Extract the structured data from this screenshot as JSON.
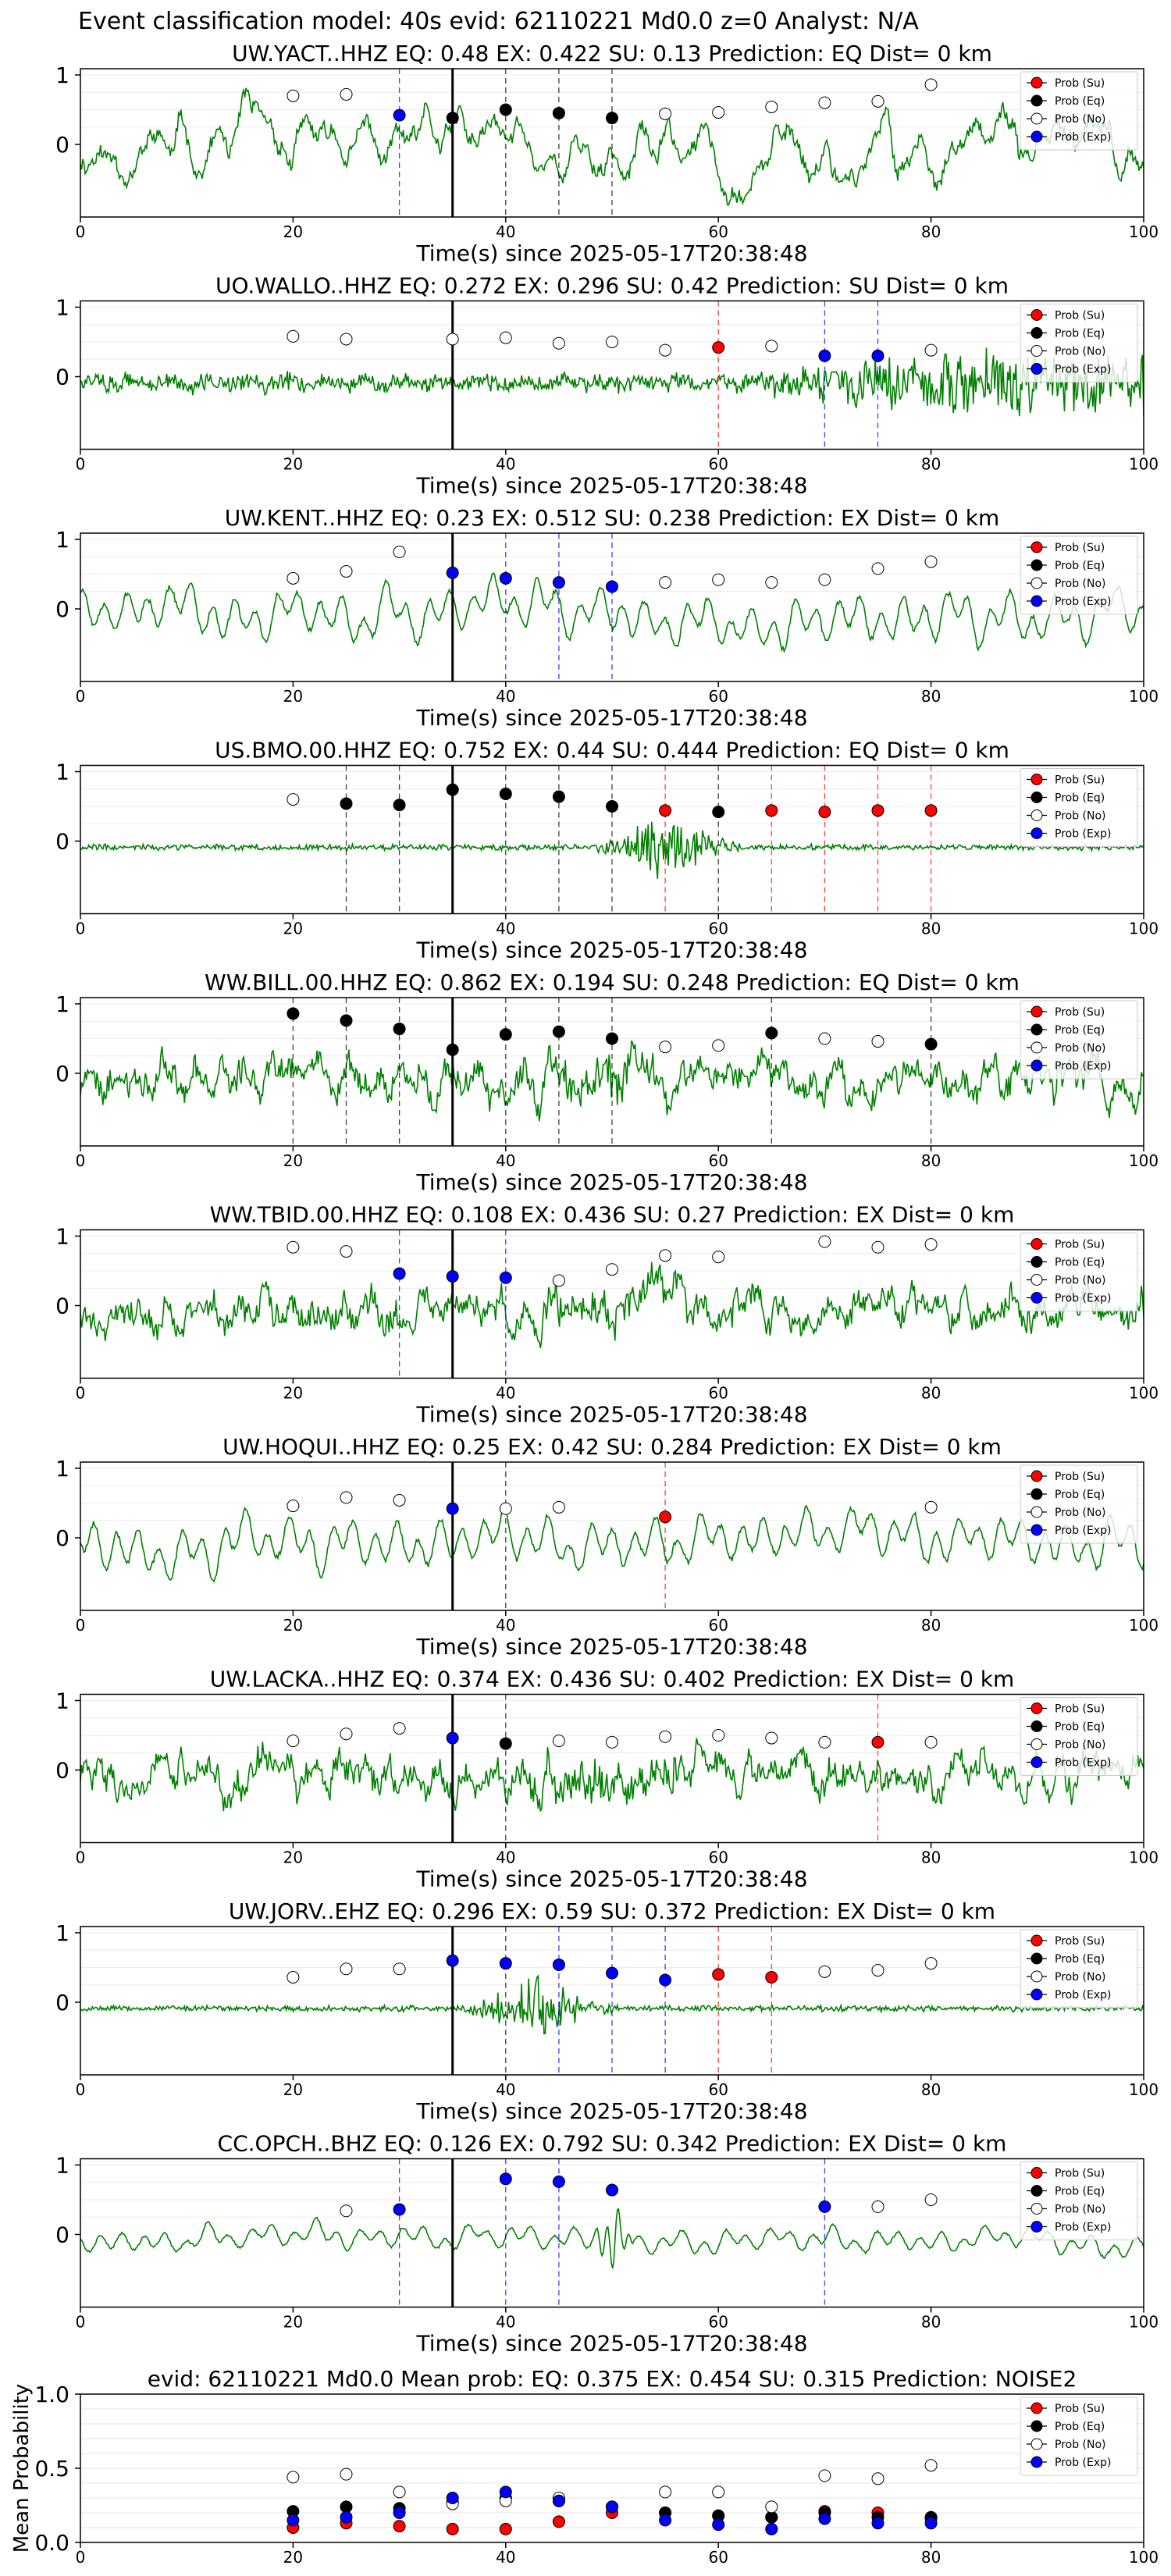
{
  "figure_title": "Event classification model: 40s evid: 62110221 Md0.0 z=0 Analyst: N/A",
  "colors": {
    "waveform": "#008000",
    "su": "#ff0000",
    "eq": "#000000",
    "no": "#ffffff",
    "exp": "#0000ff",
    "su_line": "#ff0000",
    "eq_line": "#000000",
    "exp_line": "#0000ff",
    "origin_line": "#000000"
  },
  "legend": [
    "Prob (Su)",
    "Prob (Eq)",
    "Prob (No)",
    "Prob (Exp)"
  ],
  "chart_data": [
    {
      "type": "line",
      "title": "UW.YACT..HHZ   EQ: 0.48   EX: 0.422   SU: 0.13   Prediction: EQ    Dist= 0 km",
      "xlabel": "Time(s) since 2025-05-17T20:38:48",
      "xlim": [
        0,
        100
      ],
      "xticks": [
        "0",
        "20",
        "40",
        "60",
        "80",
        "100"
      ],
      "yticks": [
        "1",
        "0"
      ],
      "origin_time": 35,
      "waveform": "narrowband",
      "legend_loc": "upper right",
      "points": [
        [
          20,
          "no",
          0.7
        ],
        [
          25,
          "no",
          0.72
        ],
        [
          30,
          "exp",
          0.42
        ],
        [
          35,
          "eq",
          0.38
        ],
        [
          40,
          "eq",
          0.5
        ],
        [
          45,
          "eq",
          0.45
        ],
        [
          50,
          "eq",
          0.38
        ],
        [
          55,
          "no",
          0.44
        ],
        [
          60,
          "no",
          0.46
        ],
        [
          65,
          "no",
          0.54
        ],
        [
          70,
          "no",
          0.6
        ],
        [
          75,
          "no",
          0.62
        ],
        [
          80,
          "no",
          0.86
        ]
      ],
      "vlines": [
        [
          30,
          "exp"
        ],
        [
          40,
          "eq"
        ],
        [
          45,
          "eq"
        ],
        [
          50,
          "eq"
        ]
      ]
    },
    {
      "type": "line",
      "title": "UO.WALLO..HHZ   EQ: 0.272   EX: 0.296   SU: 0.42   Prediction: SU    Dist= 0 km",
      "xlabel": "Time(s) since 2025-05-17T20:38:48",
      "xlim": [
        0,
        100
      ],
      "xticks": [
        "0",
        "20",
        "40",
        "60",
        "80",
        "100"
      ],
      "yticks": [
        "1",
        "0"
      ],
      "origin_time": 35,
      "waveform": "noisy_tail",
      "legend_loc": "upper right",
      "points": [
        [
          20,
          "no",
          0.58
        ],
        [
          25,
          "no",
          0.54
        ],
        [
          35,
          "no",
          0.54
        ],
        [
          40,
          "no",
          0.56
        ],
        [
          45,
          "no",
          0.48
        ],
        [
          50,
          "no",
          0.5
        ],
        [
          55,
          "no",
          0.38
        ],
        [
          60,
          "su",
          0.42
        ],
        [
          65,
          "no",
          0.44
        ],
        [
          70,
          "exp",
          0.3
        ],
        [
          75,
          "exp",
          0.3
        ],
        [
          80,
          "no",
          0.38
        ]
      ],
      "vlines": [
        [
          60,
          "su"
        ],
        [
          70,
          "exp"
        ],
        [
          75,
          "exp"
        ]
      ]
    },
    {
      "type": "line",
      "title": "UW.KENT..HHZ   EQ: 0.23   EX: 0.512   SU: 0.238   Prediction: EX    Dist= 0 km",
      "xlabel": "Time(s) since 2025-05-17T20:38:48",
      "xlim": [
        0,
        100
      ],
      "xticks": [
        "0",
        "20",
        "40",
        "60",
        "80",
        "100"
      ],
      "yticks": [
        "1",
        "0"
      ],
      "origin_time": 35,
      "waveform": "smooth",
      "legend_loc": "upper right",
      "points": [
        [
          20,
          "no",
          0.44
        ],
        [
          25,
          "no",
          0.54
        ],
        [
          30,
          "no",
          0.82
        ],
        [
          35,
          "exp",
          0.52
        ],
        [
          40,
          "exp",
          0.44
        ],
        [
          45,
          "exp",
          0.38
        ],
        [
          50,
          "exp",
          0.32
        ],
        [
          55,
          "no",
          0.38
        ],
        [
          60,
          "no",
          0.42
        ],
        [
          65,
          "no",
          0.38
        ],
        [
          70,
          "no",
          0.42
        ],
        [
          75,
          "no",
          0.58
        ],
        [
          80,
          "no",
          0.68
        ]
      ],
      "vlines": [
        [
          40,
          "exp"
        ],
        [
          45,
          "exp"
        ],
        [
          50,
          "exp"
        ]
      ]
    },
    {
      "type": "line",
      "title": "US.BMO.00.HHZ   EQ: 0.752   EX: 0.44   SU: 0.444   Prediction: EQ    Dist= 0 km",
      "xlabel": "Time(s) since 2025-05-17T20:38:48",
      "xlim": [
        0,
        100
      ],
      "xticks": [
        "0",
        "20",
        "40",
        "60",
        "80",
        "100"
      ],
      "yticks": [
        "1",
        "0"
      ],
      "origin_time": 35,
      "waveform": "quiet_burst",
      "legend_loc": "upper right",
      "points": [
        [
          20,
          "no",
          0.6
        ],
        [
          25,
          "eq",
          0.54
        ],
        [
          30,
          "eq",
          0.52
        ],
        [
          35,
          "eq",
          0.74
        ],
        [
          40,
          "eq",
          0.68
        ],
        [
          45,
          "eq",
          0.64
        ],
        [
          50,
          "eq",
          0.5
        ],
        [
          55,
          "su",
          0.44
        ],
        [
          60,
          "eq",
          0.42
        ],
        [
          65,
          "su",
          0.44
        ],
        [
          70,
          "su",
          0.42
        ],
        [
          75,
          "su",
          0.44
        ],
        [
          80,
          "su",
          0.44
        ]
      ],
      "vlines": [
        [
          25,
          "eq"
        ],
        [
          30,
          "eq"
        ],
        [
          40,
          "eq"
        ],
        [
          45,
          "eq"
        ],
        [
          50,
          "eq"
        ],
        [
          55,
          "su"
        ],
        [
          60,
          "eq"
        ],
        [
          65,
          "su"
        ],
        [
          70,
          "su"
        ],
        [
          75,
          "su"
        ],
        [
          80,
          "su"
        ]
      ]
    },
    {
      "type": "line",
      "title": "WW.BILL.00.HHZ   EQ: 0.862   EX: 0.194   SU: 0.248   Prediction: EQ    Dist= 0 km",
      "xlabel": "Time(s) since 2025-05-17T20:38:48",
      "xlim": [
        0,
        100
      ],
      "xticks": [
        "0",
        "20",
        "40",
        "60",
        "80",
        "100"
      ],
      "yticks": [
        "1",
        "0"
      ],
      "origin_time": 35,
      "waveform": "noisy",
      "legend_loc": "upper right",
      "points": [
        [
          20,
          "eq",
          0.86
        ],
        [
          25,
          "eq",
          0.76
        ],
        [
          30,
          "eq",
          0.64
        ],
        [
          35,
          "eq",
          0.34
        ],
        [
          40,
          "eq",
          0.56
        ],
        [
          45,
          "eq",
          0.6
        ],
        [
          50,
          "eq",
          0.5
        ],
        [
          55,
          "no",
          0.38
        ],
        [
          60,
          "no",
          0.4
        ],
        [
          65,
          "eq",
          0.58
        ],
        [
          70,
          "no",
          0.5
        ],
        [
          75,
          "no",
          0.46
        ],
        [
          80,
          "eq",
          0.42
        ]
      ],
      "vlines": [
        [
          20,
          "eq"
        ],
        [
          25,
          "eq"
        ],
        [
          30,
          "eq"
        ],
        [
          40,
          "eq"
        ],
        [
          45,
          "eq"
        ],
        [
          50,
          "eq"
        ],
        [
          65,
          "eq"
        ],
        [
          80,
          "eq"
        ]
      ]
    },
    {
      "type": "line",
      "title": "WW.TBID.00.HHZ   EQ: 0.108   EX: 0.436   SU: 0.27   Prediction: EX    Dist= 0 km",
      "xlabel": "Time(s) since 2025-05-17T20:38:48",
      "xlim": [
        0,
        100
      ],
      "xticks": [
        "0",
        "20",
        "40",
        "60",
        "80",
        "100"
      ],
      "yticks": [
        "1",
        "0"
      ],
      "origin_time": 35,
      "waveform": "noisy",
      "legend_loc": "upper right",
      "points": [
        [
          20,
          "no",
          0.84
        ],
        [
          25,
          "no",
          0.78
        ],
        [
          30,
          "exp",
          0.46
        ],
        [
          35,
          "exp",
          0.42
        ],
        [
          40,
          "exp",
          0.4
        ],
        [
          45,
          "no",
          0.36
        ],
        [
          50,
          "no",
          0.52
        ],
        [
          55,
          "no",
          0.72
        ],
        [
          60,
          "no",
          0.7
        ],
        [
          70,
          "no",
          0.92
        ],
        [
          75,
          "no",
          0.84
        ],
        [
          80,
          "no",
          0.88
        ]
      ],
      "vlines": [
        [
          30,
          "exp"
        ],
        [
          40,
          "exp"
        ]
      ]
    },
    {
      "type": "line",
      "title": "UW.HOQUI..HHZ   EQ: 0.25   EX: 0.42   SU: 0.284   Prediction: EX    Dist= 0 km",
      "xlabel": "Time(s) since 2025-05-17T20:38:48",
      "xlim": [
        0,
        100
      ],
      "xticks": [
        "0",
        "20",
        "40",
        "60",
        "80",
        "100"
      ],
      "yticks": [
        "1",
        "0"
      ],
      "origin_time": 35,
      "waveform": "smooth",
      "legend_loc": "upper right",
      "points": [
        [
          20,
          "no",
          0.46
        ],
        [
          25,
          "no",
          0.58
        ],
        [
          30,
          "no",
          0.54
        ],
        [
          35,
          "exp",
          0.42
        ],
        [
          40,
          "no",
          0.42
        ],
        [
          45,
          "no",
          0.44
        ],
        [
          55,
          "su",
          0.3
        ],
        [
          80,
          "no",
          0.44
        ]
      ],
      "vlines": [
        [
          40,
          "eq"
        ],
        [
          55,
          "su"
        ]
      ]
    },
    {
      "type": "line",
      "title": "UW.LACKA..HHZ   EQ: 0.374   EX: 0.436   SU: 0.402   Prediction: EX    Dist= 0 km",
      "xlabel": "Time(s) since 2025-05-17T20:38:48",
      "xlim": [
        0,
        100
      ],
      "xticks": [
        "0",
        "20",
        "40",
        "60",
        "80",
        "100"
      ],
      "yticks": [
        "1",
        "0"
      ],
      "origin_time": 35,
      "waveform": "noisy",
      "legend_loc": "upper right",
      "points": [
        [
          20,
          "no",
          0.42
        ],
        [
          25,
          "no",
          0.52
        ],
        [
          30,
          "no",
          0.6
        ],
        [
          35,
          "exp",
          0.46
        ],
        [
          40,
          "eq",
          0.38
        ],
        [
          45,
          "no",
          0.42
        ],
        [
          50,
          "no",
          0.4
        ],
        [
          55,
          "no",
          0.48
        ],
        [
          60,
          "no",
          0.5
        ],
        [
          65,
          "no",
          0.46
        ],
        [
          70,
          "no",
          0.4
        ],
        [
          75,
          "su",
          0.4
        ],
        [
          80,
          "no",
          0.4
        ]
      ],
      "vlines": [
        [
          40,
          "eq"
        ],
        [
          75,
          "su"
        ]
      ]
    },
    {
      "type": "line",
      "title": "UW.JORV..EHZ   EQ: 0.296   EX: 0.59   SU: 0.372   Prediction: EX    Dist= 0 km",
      "xlabel": "Time(s) since 2025-05-17T20:38:48",
      "xlim": [
        0,
        100
      ],
      "xticks": [
        "0",
        "20",
        "40",
        "60",
        "80",
        "100"
      ],
      "yticks": [
        "1",
        "0"
      ],
      "origin_time": 35,
      "waveform": "quiet_burst",
      "legend_loc": "upper right",
      "points": [
        [
          20,
          "no",
          0.36
        ],
        [
          25,
          "no",
          0.48
        ],
        [
          30,
          "no",
          0.48
        ],
        [
          35,
          "exp",
          0.6
        ],
        [
          40,
          "exp",
          0.56
        ],
        [
          45,
          "exp",
          0.54
        ],
        [
          50,
          "exp",
          0.42
        ],
        [
          55,
          "exp",
          0.32
        ],
        [
          60,
          "su",
          0.4
        ],
        [
          65,
          "su",
          0.36
        ],
        [
          70,
          "no",
          0.44
        ],
        [
          75,
          "no",
          0.46
        ],
        [
          80,
          "no",
          0.56
        ]
      ],
      "vlines": [
        [
          40,
          "eq"
        ],
        [
          45,
          "exp"
        ],
        [
          50,
          "exp"
        ],
        [
          55,
          "exp"
        ],
        [
          60,
          "su"
        ],
        [
          65,
          "su"
        ]
      ]
    },
    {
      "type": "line",
      "title": "CC.OPCH..BHZ   EQ: 0.126   EX: 0.792   SU: 0.342   Prediction: EX    Dist= 0 km",
      "xlabel": "Time(s) since 2025-05-17T20:38:48",
      "xlim": [
        0,
        100
      ],
      "xticks": [
        "0",
        "20",
        "40",
        "60",
        "80",
        "100"
      ],
      "yticks": [
        "1",
        "0"
      ],
      "origin_time": 35,
      "waveform": "smooth_quiet",
      "legend_loc": "upper right",
      "points": [
        [
          25,
          "no",
          0.34
        ],
        [
          30,
          "exp",
          0.36
        ],
        [
          40,
          "exp",
          0.8
        ],
        [
          45,
          "exp",
          0.76
        ],
        [
          50,
          "exp",
          0.64
        ],
        [
          70,
          "exp",
          0.4
        ],
        [
          75,
          "no",
          0.4
        ],
        [
          80,
          "no",
          0.5
        ]
      ],
      "vlines": [
        [
          30,
          "exp"
        ],
        [
          40,
          "exp"
        ],
        [
          45,
          "exp"
        ],
        [
          70,
          "exp"
        ]
      ]
    },
    {
      "type": "scatter",
      "title": "evid: 62110221  Md0.0   Mean prob:   EQ: 0.375   EX: 0.454   SU: 0.315   Prediction: NOISE2",
      "ylabel": "Mean Probability",
      "xlim": [
        0,
        100
      ],
      "ylim": [
        0,
        1
      ],
      "xticks": [
        "0",
        "20",
        "40",
        "60",
        "80",
        "100"
      ],
      "yticks": [
        "0.0",
        "0.5",
        "1.0"
      ],
      "grid": true,
      "legend_loc": "upper right",
      "series": [
        {
          "name": "Prob (Su)",
          "key": "su",
          "x": [
            20,
            25,
            30,
            35,
            40,
            45,
            50,
            55,
            60,
            65,
            70,
            75,
            80
          ],
          "values": [
            0.1,
            0.13,
            0.11,
            0.09,
            0.09,
            0.14,
            0.2,
            0.2,
            0.18,
            0.17,
            0.21,
            0.2,
            0.16
          ]
        },
        {
          "name": "Prob (Eq)",
          "key": "eq",
          "x": [
            20,
            25,
            30,
            35,
            40,
            45,
            50,
            55,
            60,
            65,
            70,
            75,
            80
          ],
          "values": [
            0.21,
            0.24,
            0.23,
            0.27,
            0.3,
            0.28,
            0.24,
            0.2,
            0.18,
            0.17,
            0.2,
            0.17,
            0.17
          ]
        },
        {
          "name": "Prob (No)",
          "key": "no",
          "x": [
            20,
            25,
            30,
            35,
            40,
            45,
            50,
            55,
            60,
            65,
            70,
            75,
            80
          ],
          "values": [
            0.44,
            0.46,
            0.34,
            0.26,
            0.28,
            0.3,
            0.24,
            0.34,
            0.34,
            0.24,
            0.45,
            0.43,
            0.52
          ]
        },
        {
          "name": "Prob (Exp)",
          "key": "exp",
          "x": [
            20,
            25,
            30,
            35,
            40,
            45,
            50,
            55,
            60,
            65,
            70,
            75,
            80
          ],
          "values": [
            0.15,
            0.17,
            0.2,
            0.3,
            0.34,
            0.28,
            0.24,
            0.15,
            0.12,
            0.09,
            0.16,
            0.13,
            0.13
          ]
        }
      ]
    }
  ]
}
